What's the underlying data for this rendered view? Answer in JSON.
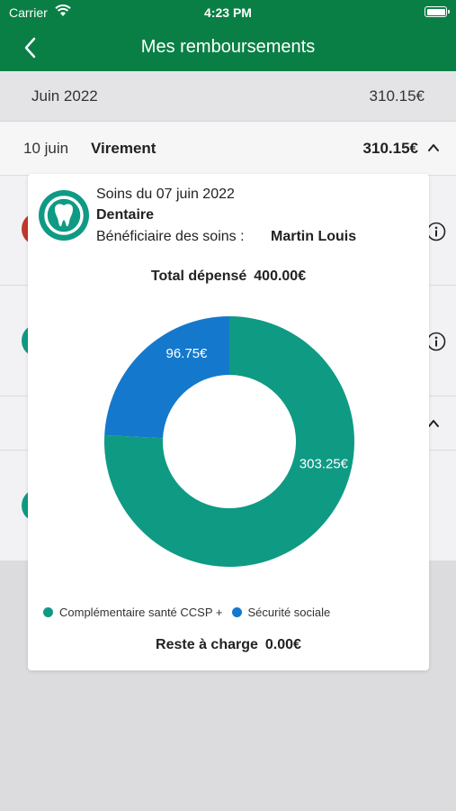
{
  "status_bar": {
    "carrier": "Carrier",
    "time": "4:23 PM"
  },
  "nav": {
    "title": "Mes remboursements",
    "back_icon": "chevron-left-icon"
  },
  "month": {
    "label": "Juin 2022",
    "amount": "310.15€"
  },
  "transaction": {
    "date": "10 juin",
    "type": "Virement",
    "amount": "310.15€",
    "expanded": true
  },
  "detail": {
    "date": "Soins du 07 juin 2022",
    "category": "Dentaire",
    "beneficiary_label": "Bénéficiaire des soins :",
    "beneficiary_name": "Martin Louis",
    "total_label": "Total dépensé",
    "total_value": "400.00€",
    "reste_label": "Reste à charge",
    "reste_value": "0.00€",
    "logo_icon": "tooth-icon"
  },
  "chart_data": {
    "type": "pie",
    "donut": true,
    "slices": [
      {
        "label": "Complémentaire santé CCSP +",
        "value": 303.25,
        "display": "303.25€",
        "color": "#0f9a84"
      },
      {
        "label": "Sécurité sociale",
        "value": 96.75,
        "display": "96.75€",
        "color": "#1479cc"
      }
    ],
    "legend_position": "bottom"
  }
}
